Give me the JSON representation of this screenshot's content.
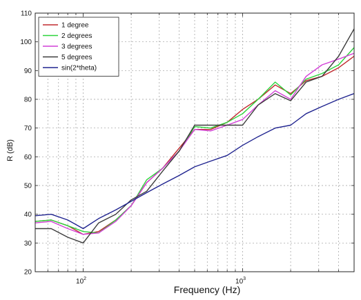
{
  "chart_data": {
    "type": "line",
    "xlabel": "Frequency (Hz)",
    "ylabel": "R (dB)",
    "x_scale": "log",
    "xlim": [
      50,
      5000
    ],
    "ylim": [
      20,
      110
    ],
    "grid": true,
    "legend_position": "top-left",
    "x_tick_labels": [
      {
        "value": 100,
        "base": "10",
        "exp": "2"
      },
      {
        "value": 1000,
        "base": "10",
        "exp": "3"
      }
    ],
    "y_ticks": [
      20,
      30,
      40,
      50,
      60,
      70,
      80,
      90,
      100,
      110
    ],
    "x": [
      50,
      63,
      80,
      100,
      125,
      160,
      200,
      250,
      315,
      400,
      500,
      630,
      800,
      1000,
      1250,
      1600,
      2000,
      2500,
      3150,
      4000,
      5000
    ],
    "series": [
      {
        "name": "1 degree",
        "color": "#c0282d",
        "values": [
          37.5,
          38,
          36,
          33,
          34,
          38,
          43,
          51,
          56,
          63,
          69.5,
          69.5,
          72,
          76.5,
          80,
          85,
          82,
          86.5,
          88,
          91,
          95
        ]
      },
      {
        "name": "2 degrees",
        "color": "#2bd43a",
        "values": [
          37.5,
          38,
          36,
          34,
          33.5,
          38,
          43,
          52,
          56,
          62,
          70.5,
          70,
          72,
          75,
          80,
          86,
          81.5,
          87,
          89,
          92,
          98
        ]
      },
      {
        "name": "3 degrees",
        "color": "#d13fd6",
        "values": [
          37,
          37.5,
          35,
          33,
          33.5,
          37.5,
          43,
          51,
          56,
          62,
          69.5,
          69,
          71,
          73,
          78,
          83,
          80,
          88,
          92,
          94,
          96
        ]
      },
      {
        "name": "5 degrees",
        "color": "#3c3c3c",
        "values": [
          35,
          35,
          32,
          30,
          37,
          40,
          45,
          48,
          55,
          62,
          71,
          71,
          71,
          71,
          78,
          82,
          79.5,
          86,
          88,
          95,
          104.5
        ]
      },
      {
        "name": "sin(2*theta)",
        "color": "#1f238f",
        "values": [
          39.5,
          40,
          38,
          35,
          38.5,
          41.5,
          44.5,
          47.5,
          50.5,
          53.5,
          56.5,
          58.5,
          60.5,
          64,
          67,
          70,
          71,
          75,
          77.5,
          80,
          82
        ]
      }
    ]
  }
}
